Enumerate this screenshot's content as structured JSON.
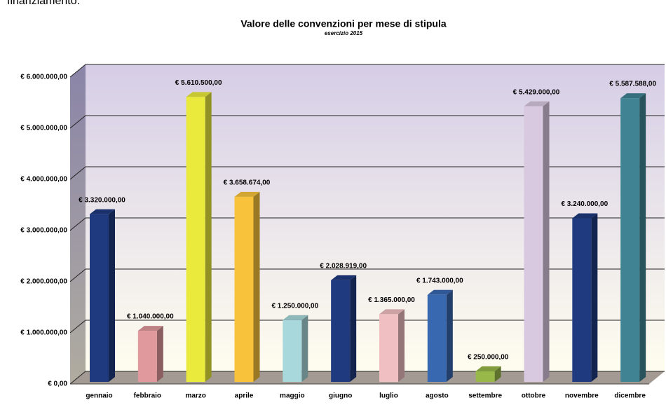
{
  "page_text": "finanziamento.",
  "chart_data": {
    "type": "bar3d",
    "title": "Valore delle convenzioni per mese di stipula",
    "subtitle": "esercizio 2015",
    "categories": [
      "gennaio",
      "febbraio",
      "marzo",
      "aprile",
      "maggio",
      "giugno",
      "luglio",
      "agosto",
      "settembre",
      "ottobre",
      "novembre",
      "dicembre"
    ],
    "values": [
      3320000,
      1040000,
      5610500,
      3658674,
      1250000,
      2028919,
      1365000,
      1743000,
      250000,
      5429000,
      3240000,
      5587588
    ],
    "value_labels": [
      "€ 3.320.000,00",
      "€ 1.040.000,00",
      "€ 5.610.500,00",
      "€ 3.658.674,00",
      "€ 1.250.000,00",
      "€ 2.028.919,00",
      "€ 1.365.000,00",
      "€ 1.743.000,00",
      "€ 250.000,00",
      "€ 5.429.000,00",
      "€ 3.240.000,00",
      "€ 5.587.588,00"
    ],
    "colors": [
      "#1f3a7e",
      "#e0999c",
      "#eaea3c",
      "#f8c33a",
      "#a8d8dc",
      "#1f3a7e",
      "#f0bfc2",
      "#3868b0",
      "#98b84a",
      "#d8c8e0",
      "#1f3a7e",
      "#408494"
    ],
    "ylim": [
      0,
      6000000
    ],
    "yticks": [
      {
        "value": 0,
        "label": "€ 0,00"
      },
      {
        "value": 1000000,
        "label": "€ 1.000.000,00"
      },
      {
        "value": 2000000,
        "label": "€ 2.000.000,00"
      },
      {
        "value": 3000000,
        "label": "€ 3.000.000,00"
      },
      {
        "value": 4000000,
        "label": "€ 4.000.000,00"
      },
      {
        "value": 5000000,
        "label": "€ 5.000.000,00"
      },
      {
        "value": 6000000,
        "label": "€ 6.000.000,00"
      }
    ],
    "grid": true
  }
}
